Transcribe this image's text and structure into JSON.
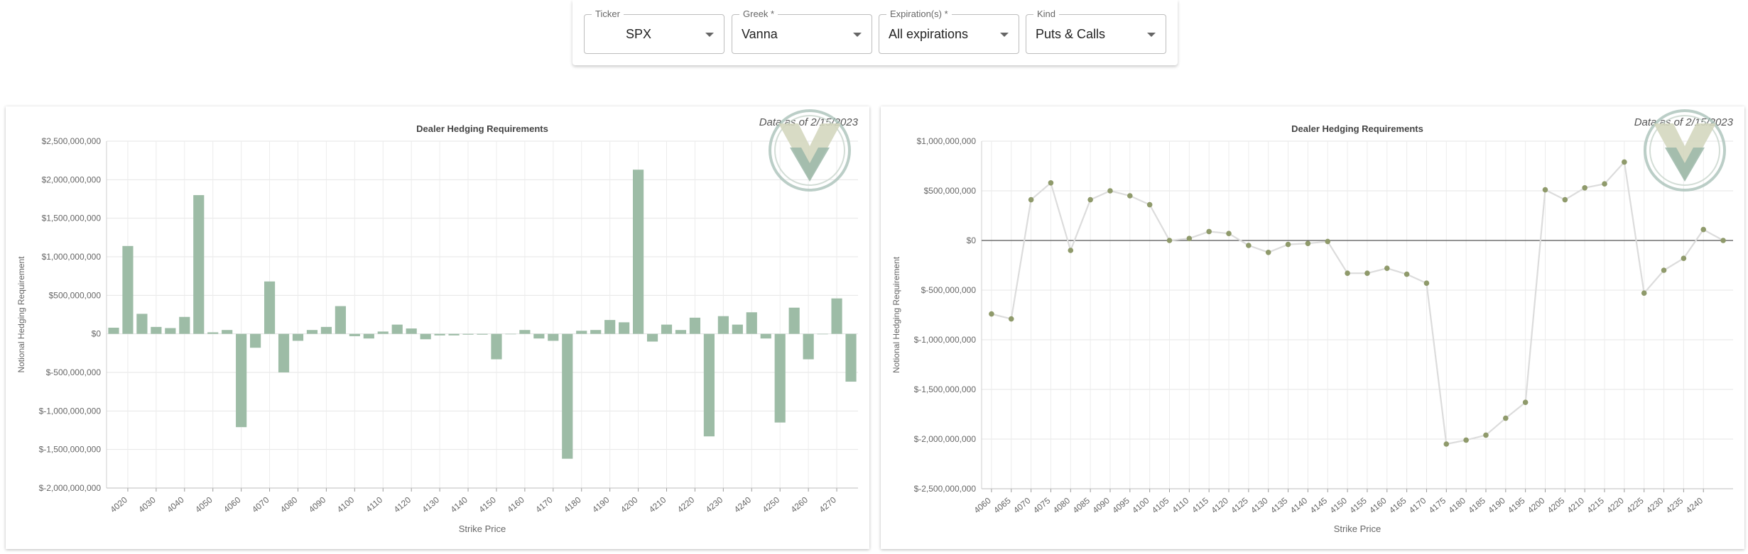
{
  "toolbar": {
    "ticker": {
      "label": "Ticker",
      "value": "SPX"
    },
    "greek": {
      "label": "Greek *",
      "value": "Vanna"
    },
    "expiration": {
      "label": "Expiration(s) *",
      "value": "All expirations"
    },
    "kind": {
      "label": "Kind",
      "value": "Puts & Calls"
    }
  },
  "left_panel": {
    "as_of": "Data as of 2/15/2023"
  },
  "right_panel": {
    "as_of": "Data as of 2/15/2023"
  },
  "colors": {
    "bar": "#9dbca6",
    "line": "#dcdcdc",
    "point": "#8f9a6b",
    "logo_light": "#d4d7bf",
    "logo_dark": "#9bb7a8",
    "logo_ring": "#a4bdb4"
  },
  "icons": {
    "dropdown": "chevron-down-icon",
    "logo": "v-shield-logo"
  },
  "chart_data": [
    {
      "type": "bar",
      "title": "Dealer Hedging Requirements",
      "xlabel": "Strike Price",
      "ylabel": "Notional Hedging Requirement",
      "ylim": [
        -2000000000,
        2500000000
      ],
      "yticks": [
        2500000000,
        2000000000,
        1500000000,
        1000000000,
        500000000,
        0,
        -500000000,
        -1000000000,
        -1500000000,
        -2000000000
      ],
      "ytick_labels": [
        "$2,500,000,000",
        "$2,000,000,000",
        "$1,500,000,000",
        "$1,000,000,000",
        "$500,000,000",
        "$0",
        "$-500,000,000",
        "$-1,000,000,000",
        "$-1,500,000,000",
        "$-2,000,000,000"
      ],
      "xtick_labels": [
        "4020",
        "4030",
        "4040",
        "4050",
        "4060",
        "4070",
        "4080",
        "4090",
        "4100",
        "4110",
        "4120",
        "4130",
        "4140",
        "4150",
        "4160",
        "4170",
        "4180",
        "4190",
        "4200",
        "4210",
        "4220",
        "4230",
        "4240",
        "4250",
        "4260",
        "4270"
      ],
      "categories": [
        4015,
        4020,
        4025,
        4030,
        4035,
        4040,
        4045,
        4050,
        4055,
        4060,
        4065,
        4070,
        4075,
        4080,
        4085,
        4090,
        4095,
        4100,
        4105,
        4110,
        4115,
        4120,
        4125,
        4130,
        4135,
        4140,
        4145,
        4150,
        4155,
        4160,
        4165,
        4170,
        4175,
        4180,
        4185,
        4190,
        4195,
        4200,
        4205,
        4210,
        4215,
        4220,
        4225,
        4230,
        4235,
        4240,
        4245,
        4250,
        4255,
        4260,
        4265,
        4270,
        4275
      ],
      "values": [
        80000000,
        1140000000,
        260000000,
        90000000,
        75000000,
        220000000,
        1800000000,
        20000000,
        50000000,
        -1210000000,
        -180000000,
        680000000,
        -500000000,
        -90000000,
        50000000,
        90000000,
        360000000,
        -30000000,
        -60000000,
        30000000,
        120000000,
        70000000,
        -70000000,
        -20000000,
        -20000000,
        -10000000,
        -10000000,
        -330000000,
        -5000000,
        50000000,
        -60000000,
        -90000000,
        -1620000000,
        40000000,
        50000000,
        180000000,
        150000000,
        2130000000,
        -100000000,
        120000000,
        50000000,
        210000000,
        -1330000000,
        230000000,
        120000000,
        280000000,
        -60000000,
        -1150000000,
        340000000,
        -330000000,
        0,
        460000000,
        -620000000
      ]
    },
    {
      "type": "line",
      "title": "Dealer Hedging Requirements",
      "xlabel": "Strike Price",
      "ylabel": "Notional Hedging Requirement",
      "ylim": [
        -2500000000,
        1000000000
      ],
      "yticks": [
        1000000000,
        500000000,
        0,
        -500000000,
        -1000000000,
        -1500000000,
        -2000000000,
        -2500000000
      ],
      "ytick_labels": [
        "$1,000,000,000",
        "$500,000,000",
        "$0",
        "$-500,000,000",
        "$-1,000,000,000",
        "$-1,500,000,000",
        "$-2,000,000,000",
        "$-2,500,000,000"
      ],
      "x": [
        4060,
        4065,
        4070,
        4075,
        4080,
        4085,
        4090,
        4095,
        4100,
        4105,
        4110,
        4115,
        4120,
        4125,
        4130,
        4135,
        4140,
        4145,
        4150,
        4155,
        4160,
        4165,
        4170,
        4175,
        4180,
        4185,
        4190,
        4195,
        4200,
        4205,
        4210,
        4215,
        4220,
        4225,
        4230,
        4235,
        4240,
        4245
      ],
      "xtick_labels": [
        "4060",
        "4065",
        "4070",
        "4075",
        "4080",
        "4085",
        "4090",
        "4095",
        "4100",
        "4105",
        "4110",
        "4115",
        "4120",
        "4125",
        "4130",
        "4135",
        "4140",
        "4145",
        "4150",
        "4155",
        "4160",
        "4165",
        "4170",
        "4175",
        "4180",
        "4185",
        "4190",
        "4195",
        "4200",
        "4205",
        "4210",
        "4215",
        "4220",
        "4225",
        "4230",
        "4235",
        "4240"
      ],
      "y": [
        -740000000,
        -790000000,
        410000000,
        580000000,
        -100000000,
        410000000,
        500000000,
        450000000,
        360000000,
        0,
        20000000,
        90000000,
        70000000,
        -50000000,
        -120000000,
        -40000000,
        -30000000,
        -10000000,
        -330000000,
        -330000000,
        -280000000,
        -340000000,
        -430000000,
        -2050000000,
        -2010000000,
        -1960000000,
        -1790000000,
        -1630000000,
        510000000,
        410000000,
        530000000,
        570000000,
        790000000,
        -530000000,
        -300000000,
        -180000000,
        110000000,
        0
      ]
    }
  ]
}
